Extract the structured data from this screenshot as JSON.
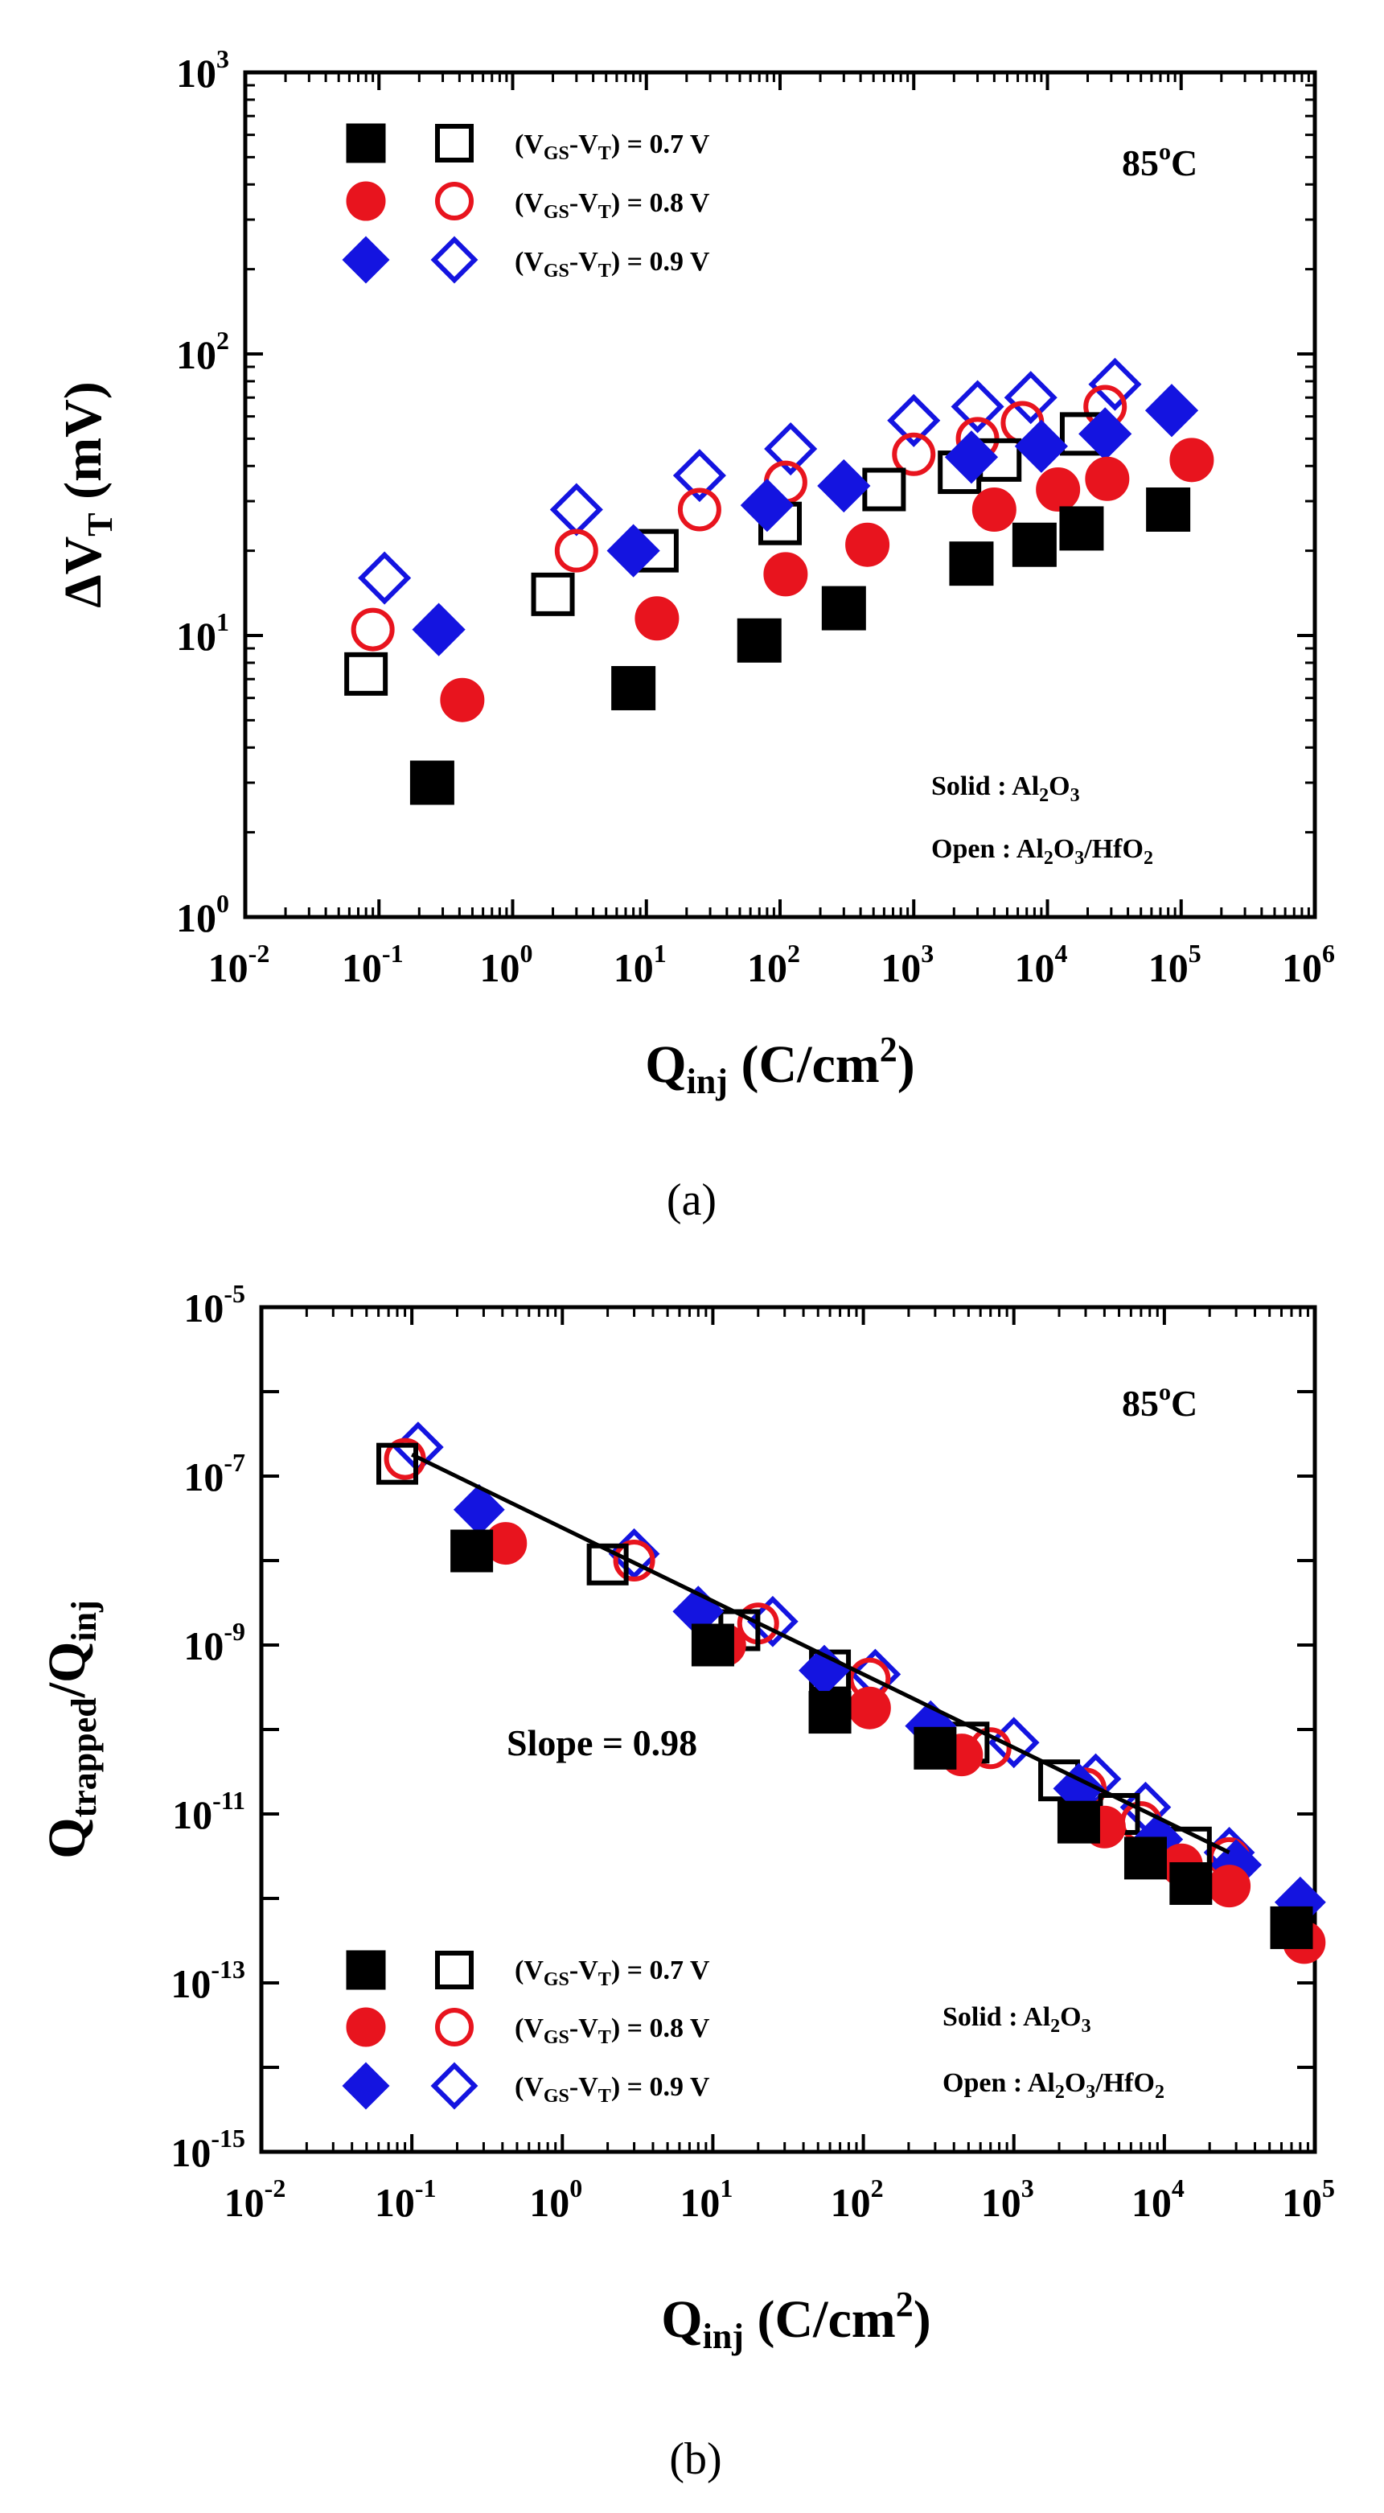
{
  "chart_data": [
    {
      "type": "scatter",
      "panel_label": "(a)",
      "temperature": "85",
      "temperature_unit": "C",
      "xscale": "log",
      "yscale": "log",
      "xlim": [
        0.01,
        1000000
      ],
      "ylim": [
        1,
        1000
      ],
      "xlabel": {
        "main": "Q",
        "sub": "inj",
        "rest": " (C/cm",
        "sup": "2",
        "close": ")"
      },
      "ylabel": {
        "main": "ΔV",
        "sub": "T",
        "rest": " (mV)"
      },
      "x_ticks": [
        {
          "b": "10",
          "e": "-2"
        },
        {
          "b": "10",
          "e": "-1"
        },
        {
          "b": "10",
          "e": "0"
        },
        {
          "b": "10",
          "e": "1"
        },
        {
          "b": "10",
          "e": "2"
        },
        {
          "b": "10",
          "e": "3"
        },
        {
          "b": "10",
          "e": "4"
        },
        {
          "b": "10",
          "e": "5"
        },
        {
          "b": "10",
          "e": "6"
        }
      ],
      "y_ticks": [
        {
          "b": "10",
          "e": "0"
        },
        {
          "b": "10",
          "e": "1"
        },
        {
          "b": "10",
          "e": "2"
        },
        {
          "b": "10",
          "e": "3"
        }
      ],
      "legend": [
        {
          "pre": "(V",
          "s1": "GS",
          "mid": "-V",
          "s2": "T",
          "post": ") = 0.7 V"
        },
        {
          "pre": "(V",
          "s1": "GS",
          "mid": "-V",
          "s2": "T",
          "post": ") = 0.8 V"
        },
        {
          "pre": "(V",
          "s1": "GS",
          "mid": "-V",
          "s2": "T",
          "post": ") = 0.9 V"
        }
      ],
      "material_note": {
        "solid": {
          "label": "Solid : Al",
          "s1": "2",
          "mid": "O",
          "s2": "3"
        },
        "open": {
          "label": "Open : Al",
          "s1": "2",
          "mid": "O",
          "s2": "3",
          "mid2": "/HfO",
          "s3": "2"
        }
      },
      "series": [
        {
          "name": "Al2O3 0.7 V",
          "marker": "square",
          "fill": "solid",
          "color": "#000000",
          "x": [
            0.25,
            8,
            70,
            300,
            2700,
            8000,
            18000,
            80000
          ],
          "y": [
            3,
            6.5,
            9.6,
            12.5,
            18,
            21,
            24,
            28
          ]
        },
        {
          "name": "Al2O3/HfO2 0.7 V",
          "marker": "square",
          "fill": "open",
          "color": "#000000",
          "x": [
            0.08,
            2,
            12,
            100,
            600,
            2200,
            4400,
            18000
          ],
          "y": [
            7.3,
            14,
            20,
            25,
            33,
            38,
            42,
            52
          ]
        },
        {
          "name": "Al2O3 0.8 V",
          "marker": "circle",
          "fill": "solid",
          "color": "#e8141e",
          "x": [
            0.42,
            12,
            110,
            450,
            4000,
            12000,
            28000,
            120000
          ],
          "y": [
            5.9,
            11.5,
            16.5,
            21,
            28,
            33,
            36,
            42
          ]
        },
        {
          "name": "Al2O3/HfO2 0.8 V",
          "marker": "circle",
          "fill": "open",
          "color": "#e8141e",
          "x": [
            0.09,
            3,
            25,
            110,
            1000,
            3000,
            6500,
            27000
          ],
          "y": [
            10.5,
            20,
            28,
            35,
            44,
            50,
            57,
            65
          ]
        },
        {
          "name": "Al2O3 0.9 V",
          "marker": "diamond",
          "fill": "solid",
          "color": "#1414e0",
          "x": [
            0.28,
            8,
            80,
            300,
            2700,
            9000,
            27000,
            85000
          ],
          "y": [
            10.5,
            20,
            29,
            34,
            43,
            47,
            52,
            63
          ]
        },
        {
          "name": "Al2O3/HfO2 0.9 V",
          "marker": "diamond",
          "fill": "open",
          "color": "#1414e0",
          "x": [
            0.11,
            3,
            25,
            120,
            1000,
            3000,
            7500,
            32000
          ],
          "y": [
            16,
            28,
            37,
            46,
            58,
            65,
            70,
            78
          ]
        }
      ]
    },
    {
      "type": "scatter",
      "panel_label": "(b)",
      "temperature": "85",
      "temperature_unit": "C",
      "xscale": "log",
      "yscale": "log",
      "xlim": [
        0.01,
        100000
      ],
      "ylim": [
        1e-15,
        1e-05
      ],
      "xlabel": {
        "main": "Q",
        "sub": "inj",
        "rest": " (C/cm",
        "sup": "2",
        "close": ")"
      },
      "ylabel": {
        "main": "Q",
        "sub": "trapped",
        "rest": "/Q",
        "sub2": "inj"
      },
      "x_ticks": [
        {
          "b": "10",
          "e": "-2"
        },
        {
          "b": "10",
          "e": "-1"
        },
        {
          "b": "10",
          "e": "0"
        },
        {
          "b": "10",
          "e": "1"
        },
        {
          "b": "10",
          "e": "2"
        },
        {
          "b": "10",
          "e": "3"
        },
        {
          "b": "10",
          "e": "4"
        },
        {
          "b": "10",
          "e": "5"
        }
      ],
      "y_ticks": [
        {
          "b": "10",
          "e": "-15"
        },
        {
          "b": "10",
          "e": "-13"
        },
        {
          "b": "10",
          "e": "-11"
        },
        {
          "b": "10",
          "e": "-9"
        },
        {
          "b": "10",
          "e": "-7"
        },
        {
          "b": "10",
          "e": "-5"
        }
      ],
      "slope_annotation": "Slope = 0.98",
      "fit_line": {
        "x": [
          0.1,
          27000
        ],
        "y": [
          1.8e-07,
          3.5e-12
        ]
      },
      "legend": [
        {
          "pre": "(V",
          "s1": "GS",
          "mid": "-V",
          "s2": "T",
          "post": ") = 0.7 V"
        },
        {
          "pre": "(V",
          "s1": "GS",
          "mid": "-V",
          "s2": "T",
          "post": ") = 0.8 V"
        },
        {
          "pre": "(V",
          "s1": "GS",
          "mid": "-V",
          "s2": "T",
          "post": ") = 0.9 V"
        }
      ],
      "material_note": {
        "solid": {
          "label": "Solid : Al",
          "s1": "2",
          "mid": "O",
          "s2": "3"
        },
        "open": {
          "label": "Open : Al",
          "s1": "2",
          "mid": "O",
          "s2": "3",
          "mid2": "/HfO",
          "s3": "2"
        }
      },
      "series": [
        {
          "name": "Al2O3 0.7 V",
          "marker": "square",
          "fill": "solid",
          "color": "#000000",
          "x": [
            0.25,
            10,
            60,
            300,
            2700,
            7500,
            15000,
            70000
          ],
          "y": [
            1.3e-08,
            1e-09,
            1.6e-10,
            6e-11,
            8e-12,
            3e-12,
            1.5e-12,
            4.5e-13
          ]
        },
        {
          "name": "Al2O3/HfO2 0.7 V",
          "marker": "square",
          "fill": "open",
          "color": "#000000",
          "x": [
            0.08,
            2,
            15,
            60,
            500,
            2000,
            5000,
            15000
          ],
          "y": [
            1.4e-07,
            9e-09,
            1.5e-09,
            5e-10,
            7e-11,
            2.5e-11,
            1e-11,
            4e-12
          ]
        },
        {
          "name": "Al2O3 0.8 V",
          "marker": "circle",
          "fill": "solid",
          "color": "#e8141e",
          "x": [
            0.42,
            12,
            110,
            450,
            4000,
            13000,
            27000,
            85000
          ],
          "y": [
            1.6e-08,
            1e-09,
            1.8e-10,
            5e-11,
            7e-12,
            2.5e-12,
            1.4e-12,
            3e-13
          ]
        },
        {
          "name": "Al2O3/HfO2 0.8 V",
          "marker": "circle",
          "fill": "open",
          "color": "#e8141e",
          "x": [
            0.09,
            3,
            20,
            110,
            700,
            3000,
            7000,
            27000
          ],
          "y": [
            1.6e-07,
            1e-08,
            1.8e-09,
            4e-10,
            6e-11,
            2e-11,
            8e-12,
            3e-12
          ]
        },
        {
          "name": "Al2O3 0.9 V",
          "marker": "diamond",
          "fill": "solid",
          "color": "#1414e0",
          "x": [
            0.28,
            8,
            55,
            280,
            2700,
            9000,
            30000,
            80000
          ],
          "y": [
            4e-08,
            2.5e-09,
            5e-10,
            1.1e-10,
            2e-11,
            5e-12,
            2.5e-12,
            9e-13
          ]
        },
        {
          "name": "Al2O3/HfO2 0.9 V",
          "marker": "diamond",
          "fill": "open",
          "color": "#1414e0",
          "x": [
            0.11,
            3,
            25,
            120,
            1000,
            3500,
            7500,
            27000
          ],
          "y": [
            2.2e-07,
            1.2e-08,
            1.9e-09,
            4.5e-10,
            7e-11,
            2.6e-11,
            1.2e-11,
            3.5e-12
          ]
        }
      ]
    }
  ]
}
